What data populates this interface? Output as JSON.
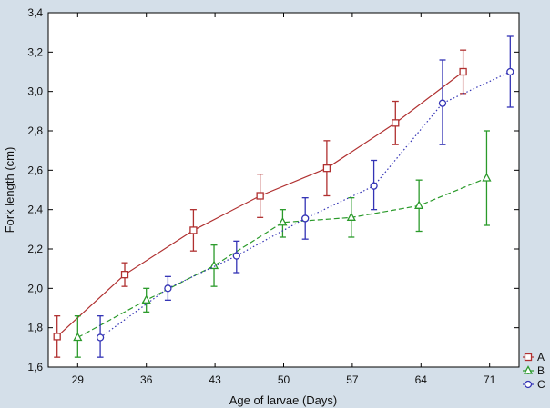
{
  "chart_data": {
    "type": "line",
    "xlabel": "Age of larvae (Days)",
    "ylabel": "Fork length (cm)",
    "xlim": [
      26,
      74
    ],
    "ylim": [
      1.6,
      3.4
    ],
    "xticks": [
      "29",
      "36",
      "43",
      "50",
      "57",
      "64",
      "71"
    ],
    "yticks": [
      "1,6",
      "1,8",
      "2,0",
      "2,2",
      "2,4",
      "2,6",
      "2,8",
      "3,0",
      "3,2",
      "3,4"
    ],
    "legend_position": "bottom-right outside plot",
    "grid": false,
    "series": [
      {
        "name": "A",
        "color": "#b03030",
        "marker": "square",
        "dash": "solid",
        "x": [
          26.9,
          33.8,
          40.8,
          47.6,
          54.4,
          61.4,
          68.3
        ],
        "y": [
          1.755,
          2.07,
          2.295,
          2.47,
          2.61,
          2.84,
          3.1
        ],
        "err_low": [
          1.65,
          2.01,
          2.19,
          2.36,
          2.47,
          2.73,
          2.99
        ],
        "err_high": [
          1.86,
          2.13,
          2.4,
          2.58,
          2.75,
          2.95,
          3.21
        ]
      },
      {
        "name": "B",
        "color": "#2a9a2a",
        "marker": "triangle",
        "dash": "dashed",
        "x": [
          29.0,
          36.0,
          42.9,
          49.9,
          56.9,
          63.8,
          70.7
        ],
        "y": [
          1.75,
          1.94,
          2.115,
          2.335,
          2.36,
          2.42,
          2.56
        ],
        "err_low": [
          1.65,
          1.88,
          2.01,
          2.26,
          2.26,
          2.29,
          2.32
        ],
        "err_high": [
          1.86,
          2.0,
          2.22,
          2.4,
          2.46,
          2.55,
          2.8
        ]
      },
      {
        "name": "C",
        "color": "#3333b5",
        "marker": "circle",
        "dash": "dotted",
        "x": [
          31.3,
          38.2,
          45.2,
          52.2,
          59.2,
          66.2,
          73.1
        ],
        "y": [
          1.75,
          2.0,
          2.165,
          2.355,
          2.52,
          2.94,
          3.1
        ],
        "err_low": [
          1.65,
          1.94,
          2.08,
          2.25,
          2.4,
          2.73,
          2.92
        ],
        "err_high": [
          1.86,
          2.06,
          2.24,
          2.46,
          2.65,
          3.16,
          3.28
        ]
      }
    ]
  }
}
